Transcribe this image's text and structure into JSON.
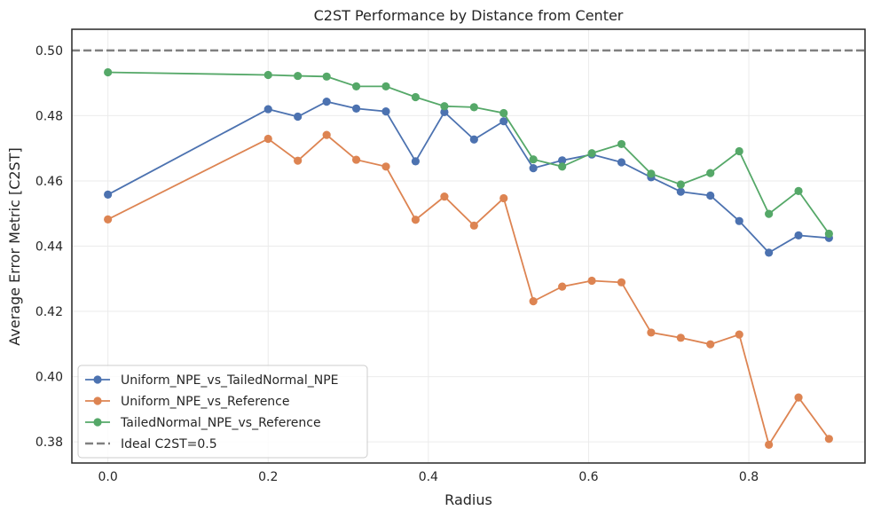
{
  "chart_data": {
    "type": "line",
    "title": "C2ST Performance by Distance from Center",
    "xlabel": "Radius",
    "ylabel": "Average Error Metric [C2ST]",
    "xlim": [
      -0.045,
      0.945
    ],
    "ylim": [
      0.3735,
      0.5065
    ],
    "xticks": [
      0.0,
      0.2,
      0.4,
      0.6,
      0.8
    ],
    "xtick_labels": [
      "0.0",
      "0.2",
      "0.4",
      "0.6",
      "0.8"
    ],
    "yticks": [
      0.38,
      0.4,
      0.42,
      0.44,
      0.46,
      0.48,
      0.5
    ],
    "ytick_labels": [
      "0.38",
      "0.40",
      "0.42",
      "0.44",
      "0.46",
      "0.48",
      "0.50"
    ],
    "grid": true,
    "legend_position": "lower-left",
    "x": [
      0.0,
      0.2,
      0.237,
      0.273,
      0.31,
      0.347,
      0.384,
      0.42,
      0.457,
      0.494,
      0.531,
      0.567,
      0.604,
      0.641,
      0.678,
      0.715,
      0.752,
      0.788,
      0.825,
      0.862,
      0.9
    ],
    "series": [
      {
        "name": "Uniform_NPE_vs_TailedNormal_NPE",
        "color": "#4c72b0",
        "values": [
          0.4558,
          0.482,
          0.4797,
          0.4843,
          0.4822,
          0.4813,
          0.466,
          0.4811,
          0.4727,
          0.4783,
          0.4639,
          0.4663,
          0.4681,
          0.4657,
          0.4611,
          0.4567,
          0.4555,
          0.4477,
          0.438,
          0.4433,
          0.4425
        ]
      },
      {
        "name": "Uniform_NPE_vs_Reference",
        "color": "#dd8452",
        "values": [
          0.4482,
          0.4729,
          0.4662,
          0.4741,
          0.4665,
          0.4644,
          0.4481,
          0.4552,
          0.4463,
          0.4547,
          0.4231,
          0.4276,
          0.4294,
          0.4289,
          0.4135,
          0.4119,
          0.4099,
          0.4129,
          0.3791,
          0.3936,
          0.3809
        ]
      },
      {
        "name": "TailedNormal_NPE_vs_Reference",
        "color": "#55a868",
        "values": [
          0.4933,
          0.4925,
          0.4922,
          0.492,
          0.489,
          0.489,
          0.4857,
          0.4829,
          0.4826,
          0.4808,
          0.4666,
          0.4644,
          0.4685,
          0.4713,
          0.4622,
          0.4589,
          0.4624,
          0.4691,
          0.4499,
          0.4569,
          0.4438
        ]
      }
    ],
    "reference_line": {
      "label": "Ideal C2ST=0.5",
      "y": 0.5,
      "color": "#808080",
      "style": "dashed"
    }
  }
}
